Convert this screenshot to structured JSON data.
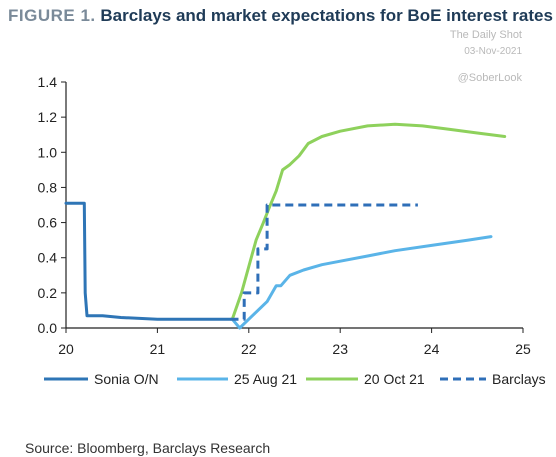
{
  "figure_label": "FIGURE 1.",
  "title": "Barclays and market expectations for BoE interest rates",
  "watermark": {
    "name": "The Daily Shot",
    "date": "03-Nov-2021",
    "handle": "@SoberLook"
  },
  "source": "Source: Bloomberg, Barclays Research",
  "colors": {
    "sonia": "#2e75b6",
    "aug": "#5ab4e8",
    "oct": "#8ed15c",
    "barclays": "#2f6fb8"
  },
  "chart_data": {
    "type": "line",
    "xlim": [
      20,
      25
    ],
    "ylim": [
      0,
      1.4
    ],
    "x_ticks": [
      20,
      21,
      22,
      23,
      24,
      25
    ],
    "y_ticks": [
      0.0,
      0.2,
      0.4,
      0.6,
      0.8,
      1.0,
      1.2,
      1.4
    ],
    "x_tick_labels": [
      "20",
      "21",
      "22",
      "23",
      "24",
      "25"
    ],
    "y_tick_labels": [
      "0.0",
      "0.2",
      "0.4",
      "0.6",
      "0.8",
      "1.0",
      "1.2",
      "1.4"
    ],
    "grid": false,
    "legend_position": "bottom",
    "series": [
      {
        "name": "Sonia O/N",
        "style": "solid",
        "points": [
          [
            20.0,
            0.71
          ],
          [
            20.1,
            0.71
          ],
          [
            20.2,
            0.71
          ],
          [
            20.21,
            0.2
          ],
          [
            20.23,
            0.07
          ],
          [
            20.4,
            0.07
          ],
          [
            20.6,
            0.06
          ],
          [
            21.0,
            0.05
          ],
          [
            21.4,
            0.05
          ],
          [
            21.8,
            0.05
          ]
        ]
      },
      {
        "name": "25 Aug 21",
        "style": "solid",
        "points": [
          [
            21.82,
            0.05
          ],
          [
            21.9,
            0.0
          ],
          [
            22.0,
            0.05
          ],
          [
            22.1,
            0.1
          ],
          [
            22.2,
            0.15
          ],
          [
            22.3,
            0.24
          ],
          [
            22.35,
            0.24
          ],
          [
            22.45,
            0.3
          ],
          [
            22.6,
            0.33
          ],
          [
            22.8,
            0.36
          ],
          [
            23.0,
            0.38
          ],
          [
            23.3,
            0.41
          ],
          [
            23.6,
            0.44
          ],
          [
            24.0,
            0.47
          ],
          [
            24.4,
            0.5
          ],
          [
            24.65,
            0.52
          ]
        ]
      },
      {
        "name": "20 Oct 21",
        "style": "solid",
        "points": [
          [
            21.82,
            0.05
          ],
          [
            21.92,
            0.2
          ],
          [
            22.0,
            0.35
          ],
          [
            22.08,
            0.5
          ],
          [
            22.16,
            0.6
          ],
          [
            22.22,
            0.68
          ],
          [
            22.3,
            0.78
          ],
          [
            22.37,
            0.9
          ],
          [
            22.45,
            0.93
          ],
          [
            22.55,
            0.98
          ],
          [
            22.65,
            1.05
          ],
          [
            22.8,
            1.09
          ],
          [
            23.0,
            1.12
          ],
          [
            23.3,
            1.15
          ],
          [
            23.6,
            1.16
          ],
          [
            23.9,
            1.15
          ],
          [
            24.2,
            1.13
          ],
          [
            24.5,
            1.11
          ],
          [
            24.8,
            1.09
          ]
        ]
      },
      {
        "name": "Barclays",
        "style": "dashed",
        "points": [
          [
            21.8,
            0.05
          ],
          [
            21.95,
            0.05
          ],
          [
            21.95,
            0.2
          ],
          [
            22.1,
            0.2
          ],
          [
            22.1,
            0.45
          ],
          [
            22.2,
            0.45
          ],
          [
            22.2,
            0.7
          ],
          [
            23.85,
            0.7
          ]
        ]
      }
    ]
  }
}
